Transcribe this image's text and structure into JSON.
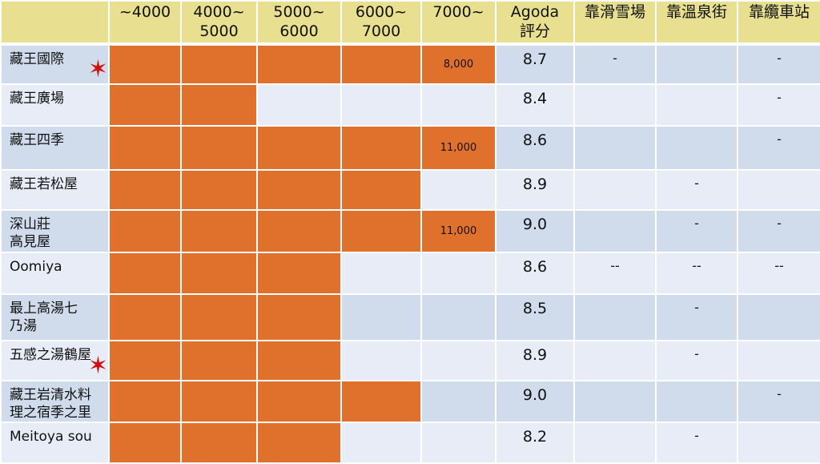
{
  "headers": [
    "",
    "~4000",
    "4000~\n5000",
    "5000~\n6000",
    "6000~\n7000",
    "7000~",
    "Agoda\n評分",
    "靠滑雪場",
    "靠溫泉街",
    "靠纜車站"
  ],
  "colors": {
    "fill": "#e0712d",
    "header": "#e8e090",
    "star": "#d01010"
  },
  "rows": [
    {
      "name": "藏王國際",
      "star": true,
      "fill": 5,
      "price": "8,000",
      "score": "8.7",
      "marks": [
        "-",
        "",
        "-"
      ],
      "h": 50
    },
    {
      "name": "藏王廣場",
      "star": false,
      "fill": 2,
      "price": "",
      "score": "8.4",
      "marks": [
        "",
        "",
        "-"
      ],
      "h": 52
    },
    {
      "name": "藏王四季",
      "star": false,
      "fill": 5,
      "price": "11,000",
      "score": "8.6",
      "marks": [
        "",
        "",
        "-"
      ],
      "h": 55
    },
    {
      "name": "藏王若松屋",
      "star": false,
      "fill": 4,
      "price": "",
      "score": "8.9",
      "marks": [
        "",
        "-",
        ""
      ],
      "h": 50
    },
    {
      "name": "深山莊\n高見屋",
      "star": false,
      "fill": 5,
      "price": "11,000",
      "score": "9.0",
      "marks": [
        "",
        "-",
        "-"
      ],
      "h": 53
    },
    {
      "name": "Oomiya",
      "star": false,
      "fill": 3,
      "price": "",
      "score": "8.6",
      "marks": [
        "--",
        "--",
        "--"
      ],
      "h": 52
    },
    {
      "name": "最上高湯七\n乃湯",
      "star": false,
      "fill": 3,
      "price": "",
      "score": "8.5",
      "marks": [
        "",
        "-",
        ""
      ],
      "h": 58
    },
    {
      "name": "五感之湯鶴屋",
      "star": true,
      "fill": 3,
      "price": "",
      "score": "8.9",
      "marks": [
        "",
        "-",
        ""
      ],
      "h": 50
    },
    {
      "name": "藏王岩清水料\n理之宿季之里",
      "star": false,
      "fill": 4,
      "price": "",
      "score": "9.0",
      "marks": [
        "",
        "",
        "-"
      ],
      "h": 52
    },
    {
      "name": "Meitoya sou",
      "star": false,
      "fill": 3,
      "price": "",
      "score": "8.2",
      "marks": [
        "",
        "-",
        ""
      ],
      "h": 51
    }
  ]
}
